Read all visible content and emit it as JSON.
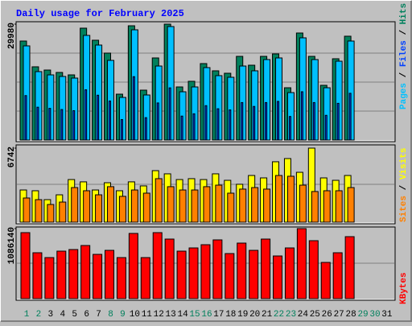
{
  "chart_data": {
    "type": "bar",
    "title": "Daily usage for February 2025",
    "categories": [
      "1",
      "2",
      "3",
      "4",
      "5",
      "6",
      "7",
      "8",
      "9",
      "10",
      "11",
      "12",
      "13",
      "14",
      "15",
      "16",
      "17",
      "18",
      "19",
      "20",
      "21",
      "22",
      "23",
      "24",
      "25",
      "26",
      "27",
      "28",
      "29",
      "30",
      "31"
    ],
    "category_colors": [
      "#00805c",
      "#00805c",
      "#000000",
      "#000000",
      "#000000",
      "#000000",
      "#000000",
      "#00805c",
      "#00805c",
      "#000000",
      "#000000",
      "#000000",
      "#000000",
      "#000000",
      "#00805c",
      "#00805c",
      "#000000",
      "#000000",
      "#000000",
      "#000000",
      "#000000",
      "#00805c",
      "#00805c",
      "#000000",
      "#000000",
      "#000000",
      "#000000",
      "#000000",
      "#00805c",
      "#00805c",
      "#000000"
    ],
    "panels": [
      {
        "ylim": [
          0,
          29980
        ],
        "yticks": [
          29980
        ],
        "series": [
          {
            "name": "Hits",
            "color": "#00805c",
            "values": [
              25610,
              18950,
              18110,
              17490,
              16860,
              28940,
              25820,
              22490,
              11870,
              29560,
              12910,
              21240,
              29980,
              13740,
              15200,
              19780,
              17910,
              17280,
              21650,
              19360,
              21650,
              22280,
              13530,
              27690,
              21650,
              14160,
              21030,
              26860,
              null,
              null,
              null
            ]
          },
          {
            "name": "Files",
            "color": "#0040ff",
            "values": [
              11500,
              8500,
              8200,
              7900,
              7600,
              13000,
              11600,
              10100,
              5300,
              16400,
              5800,
              9600,
              13500,
              6200,
              6800,
              8900,
              8100,
              7800,
              9700,
              8700,
              9700,
              10000,
              6100,
              12500,
              9700,
              6400,
              9500,
              12100,
              null,
              null,
              null
            ]
          },
          {
            "name": "Pages",
            "color": "#00c0ff",
            "values": [
              24360,
              17700,
              16860,
              16450,
              16030,
              27070,
              24570,
              20610,
              11030,
              28520,
              11660,
              19150,
              29360,
              12490,
              13740,
              18740,
              16660,
              16240,
              19150,
              17910,
              20820,
              21240,
              12280,
              26440,
              20820,
              13530,
              20400,
              25610,
              null,
              null,
              null
            ]
          }
        ]
      },
      {
        "ylim": [
          0,
          6742
        ],
        "yticks": [
          6742
        ],
        "series": [
          {
            "name": "Visits",
            "color": "#ffff00",
            "values": [
              2930,
              2860,
              2050,
              2490,
              3880,
              3670,
              2930,
              3590,
              2860,
              3670,
              3300,
              4690,
              4400,
              3880,
              3960,
              3880,
              4400,
              3810,
              3450,
              4250,
              4030,
              5500,
              5790,
              4540,
              6742,
              4030,
              3810,
              4250,
              null,
              null,
              null
            ]
          },
          {
            "name": "Sites",
            "color": "#ff8000",
            "values": [
              2200,
              2050,
              1610,
              1830,
              3150,
              2860,
              2490,
              3230,
              2350,
              2930,
              2640,
              3960,
              3230,
              2930,
              2930,
              3230,
              3370,
              2640,
              3010,
              3150,
              3010,
              4250,
              4180,
              3370,
              2790,
              2860,
              2860,
              3150,
              null,
              null,
              null
            ]
          }
        ]
      },
      {
        "ylim": [
          0,
          1086140
        ],
        "yticks": [
          1086140
        ],
        "series": [
          {
            "name": "KBytes",
            "color": "#ff0000",
            "values": [
              1023700,
              711600,
              636700,
              736600,
              761500,
              823900,
              686600,
              749000,
              636700,
              1011200,
              636700,
              1023700,
              923800,
              736600,
              786500,
              836400,
              911300,
              699100,
              861400,
              749000,
              923800,
              661700,
              786500,
              1086140,
              898800,
              561800,
              711600,
              961300,
              null,
              null,
              null
            ]
          }
        ]
      }
    ]
  }
}
